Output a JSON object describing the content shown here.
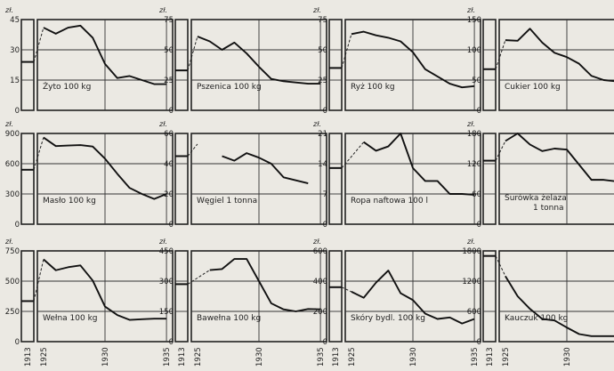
{
  "chart_data": [
    {
      "type": "line",
      "unit": "zł.",
      "label": "Żyto 100 kg",
      "ylim": [
        0,
        45
      ],
      "yticks": [
        0,
        15,
        30,
        45
      ],
      "tick_labels": [
        "0",
        "15",
        "30",
        "45"
      ],
      "base_1913": 24,
      "x": [
        1925,
        1926,
        1927,
        1928,
        1929,
        1930,
        1931,
        1932,
        1933,
        1934,
        1935
      ],
      "values": [
        41,
        38,
        41,
        42,
        36,
        23,
        16,
        17,
        15,
        13,
        13
      ]
    },
    {
      "type": "line",
      "unit": "zł.",
      "label": "Pszenica 100 kg",
      "ylim": [
        0,
        75
      ],
      "yticks": [
        0,
        25,
        50,
        75
      ],
      "tick_labels": [
        "0",
        "25",
        "50",
        "75"
      ],
      "base_1913": 33,
      "x": [
        1925,
        1926,
        1927,
        1928,
        1929,
        1930,
        1931,
        1932,
        1933,
        1934,
        1935
      ],
      "values": [
        61,
        57,
        50,
        56,
        47,
        36,
        26,
        24,
        23,
        22,
        22
      ]
    },
    {
      "type": "line",
      "unit": "zł.",
      "label": "Ryż 100 kg",
      "ylim": [
        0,
        75
      ],
      "yticks": [
        0,
        25,
        50,
        75
      ],
      "tick_labels": [
        "0",
        "25",
        "50",
        "75"
      ],
      "base_1913": 35,
      "x": [
        1925,
        1926,
        1927,
        1928,
        1929,
        1930,
        1931,
        1932,
        1933,
        1934,
        1935
      ],
      "values": [
        63,
        65,
        62,
        60,
        57,
        48,
        34,
        28,
        22,
        19,
        20
      ]
    },
    {
      "type": "line",
      "unit": "zł.",
      "label": "Cukier 100 kg",
      "ylim": [
        0,
        150
      ],
      "yticks": [
        0,
        50,
        100,
        150
      ],
      "tick_labels": [
        "0",
        "50",
        "100",
        "150"
      ],
      "base_1913": 68,
      "x": [
        1925,
        1926,
        1927,
        1928,
        1929,
        1930,
        1931,
        1932,
        1933,
        1934,
        1935
      ],
      "values": [
        116,
        115,
        135,
        112,
        95,
        88,
        77,
        57,
        50,
        48,
        49
      ]
    },
    {
      "type": "line",
      "unit": "zł.",
      "label": "Masło 100 kg",
      "ylim": [
        0,
        900
      ],
      "yticks": [
        0,
        300,
        600,
        900
      ],
      "tick_labels": [
        "0",
        "300",
        "600",
        "900"
      ],
      "base_1913": 540,
      "x": [
        1925,
        1926,
        1927,
        1928,
        1929,
        1930,
        1931,
        1932,
        1933,
        1934,
        1935
      ],
      "values": [
        860,
        775,
        780,
        785,
        770,
        650,
        500,
        360,
        300,
        250,
        300
      ]
    },
    {
      "type": "line",
      "unit": "zł.",
      "label": "Węgiel 1 tonna",
      "ylim": [
        0,
        60
      ],
      "yticks": [
        0,
        20,
        40,
        60
      ],
      "tick_labels": [
        "0",
        "20",
        "40",
        "60"
      ],
      "base_1913": 45,
      "x": [
        1925,
        1926,
        1927,
        1928,
        1929,
        1930,
        1931,
        1932,
        1933,
        1934,
        1935
      ],
      "values": [
        53,
        null,
        45,
        42,
        47,
        44,
        40,
        31,
        29,
        27,
        null
      ]
    },
    {
      "type": "line",
      "unit": "zł.",
      "label": "Ropa naftowa 100 l",
      "ylim": [
        0,
        21
      ],
      "yticks": [
        0,
        7,
        14,
        21
      ],
      "tick_labels": [
        "0",
        "7",
        "14",
        "21"
      ],
      "base_1913": 13,
      "x": [
        1925,
        1926,
        1927,
        1928,
        1929,
        1930,
        1931,
        1932,
        1933,
        1934,
        1935
      ],
      "values": [
        null,
        19,
        17,
        18,
        21,
        13,
        10,
        10,
        7,
        7,
        6.8
      ]
    },
    {
      "type": "line",
      "unit": "zł.",
      "label": "Surówka żelaza 1 tonna",
      "ylim": [
        0,
        180
      ],
      "yticks": [
        0,
        60,
        120,
        180
      ],
      "tick_labels": [
        "0",
        "60",
        "120",
        "180"
      ],
      "base_1913": 126,
      "x": [
        1925,
        1926,
        1927,
        1928,
        1929,
        1930,
        1931,
        1932,
        1933,
        1934,
        1935
      ],
      "values": [
        165,
        180,
        158,
        145,
        150,
        148,
        118,
        88,
        88,
        85,
        85
      ]
    },
    {
      "type": "line",
      "unit": "zł.",
      "label": "Wełna 100 kg",
      "ylim": [
        0,
        750
      ],
      "yticks": [
        0,
        250,
        500,
        750
      ],
      "tick_labels": [
        "0",
        "250",
        "500",
        "750"
      ],
      "base_1913": 335,
      "x": [
        1925,
        1926,
        1927,
        1928,
        1929,
        1930,
        1931,
        1932,
        1933,
        1934,
        1935
      ],
      "values": [
        680,
        590,
        615,
        630,
        505,
        290,
        220,
        180,
        185,
        190,
        190
      ]
    },
    {
      "type": "line",
      "unit": "zł.",
      "label": "Bawełna 100 kg",
      "ylim": [
        0,
        450
      ],
      "yticks": [
        0,
        150,
        300,
        450
      ],
      "tick_labels": [
        "0",
        "150",
        "300",
        "450"
      ],
      "base_1913": 285,
      "x": [
        1925,
        1926,
        1927,
        1928,
        1929,
        1930,
        1931,
        1932,
        1933,
        1934,
        1935
      ],
      "values": [
        null,
        355,
        360,
        410,
        410,
        300,
        190,
        160,
        150,
        162,
        160
      ]
    },
    {
      "type": "line",
      "unit": "zł.",
      "label": "Skóry bydl. 100 kg",
      "ylim": [
        0,
        600
      ],
      "yticks": [
        0,
        200,
        400,
        600
      ],
      "tick_labels": [
        "0",
        "200",
        "400",
        "600"
      ],
      "base_1913": 360,
      "x": [
        1925,
        1926,
        1927,
        1928,
        1929,
        1930,
        1931,
        1932,
        1933,
        1934,
        1935
      ],
      "values": [
        330,
        290,
        390,
        470,
        320,
        275,
        185,
        150,
        160,
        120,
        150
      ]
    },
    {
      "type": "line",
      "unit": "zł.",
      "label": "Kauczuk 100 kg",
      "ylim": [
        0,
        1800
      ],
      "yticks": [
        0,
        600,
        1200,
        1800
      ],
      "tick_labels": [
        "0",
        "600",
        "1200",
        "1800"
      ],
      "base_1913": 1700,
      "x": [
        1925,
        1926,
        1927,
        1928,
        1929,
        1930,
        1931,
        1932,
        1933,
        1934,
        1935
      ],
      "values": [
        1300,
        900,
        650,
        450,
        420,
        280,
        150,
        110,
        110,
        110,
        110
      ]
    }
  ],
  "x_tick_labels": [
    "1913",
    "1925",
    "1930",
    "1935"
  ]
}
